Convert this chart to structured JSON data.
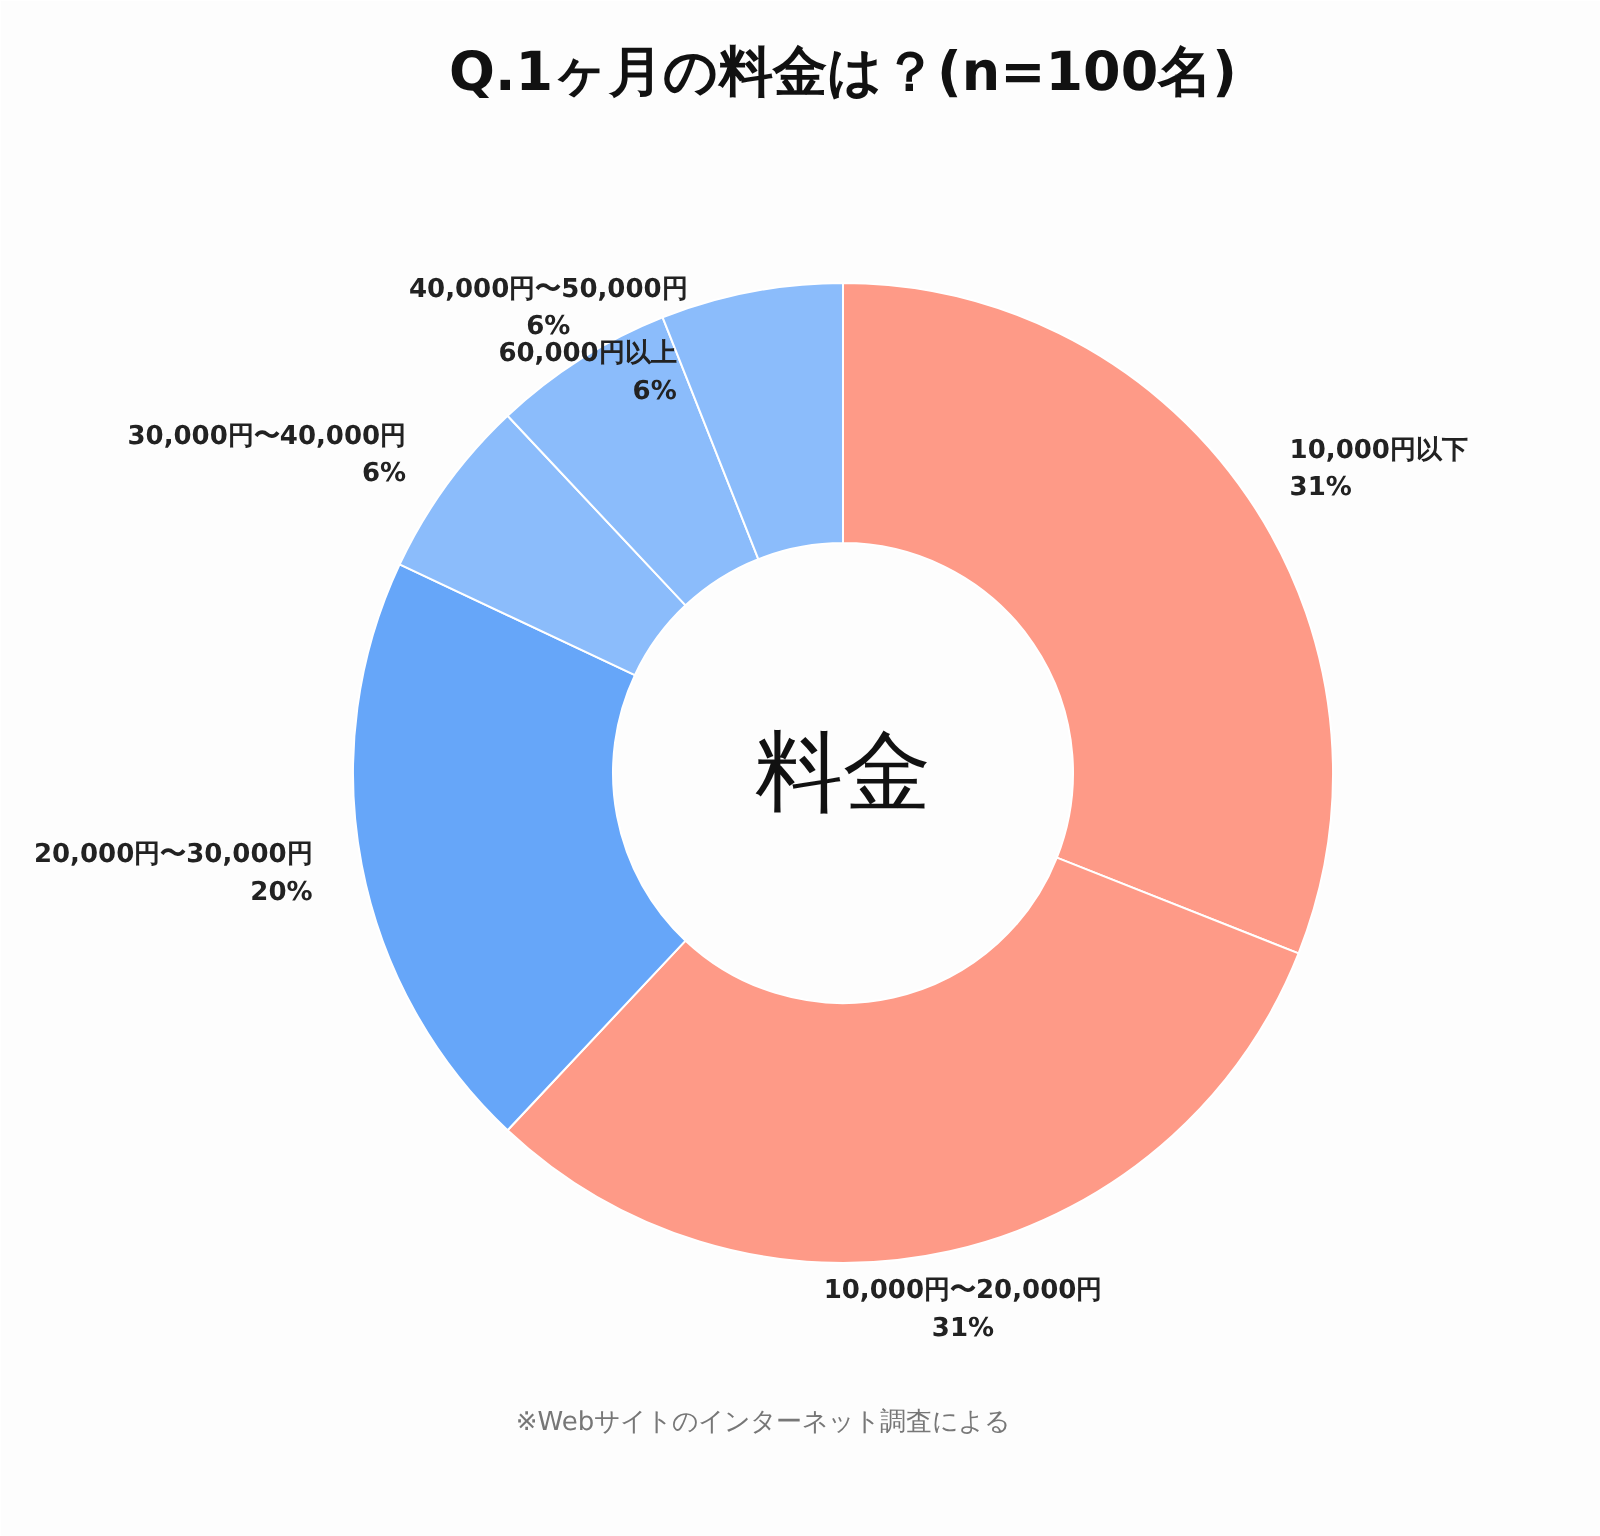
{
  "chart_data": {
    "type": "donut",
    "title": "Q.1ヶ月の料金は？(n=100名)",
    "categories": [
      "10,000円以下",
      "10,000円〜20,000円",
      "20,000円〜30,000円",
      "30,000円〜40,000円",
      "40,000円〜50,000円",
      "60,000円以上"
    ],
    "values": [
      31,
      31,
      20,
      6,
      6,
      6
    ],
    "value_labels": [
      "31%",
      "31%",
      "20%",
      "6%",
      "6%",
      "6%"
    ],
    "colors": [
      "#fe9a87",
      "#fe9a87",
      "#66a6f9",
      "#8bbcfb",
      "#8bbcfb",
      "#8bbcfb"
    ],
    "annotations": [
      "料金",
      "※Webサイトのインターネット調査による"
    ]
  }
}
